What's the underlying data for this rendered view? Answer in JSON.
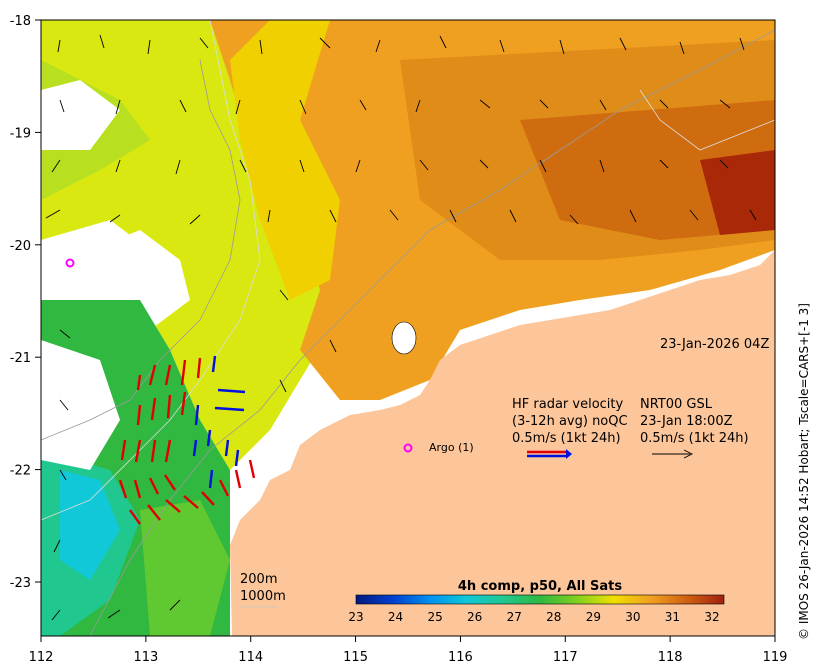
{
  "map": {
    "timestamp": "23-Jan-2026 04Z",
    "x_ticks": [
      "112",
      "113",
      "114",
      "115",
      "116",
      "117",
      "118",
      "119"
    ],
    "y_ticks": [
      "-18",
      "-19",
      "-20",
      "-21",
      "-22",
      "-23"
    ],
    "colorbar": {
      "title": "4h comp, p50, All Sats",
      "ticks": [
        "23",
        "24",
        "25",
        "26",
        "27",
        "28",
        "29",
        "30",
        "31",
        "32"
      ],
      "colors": [
        "#001a80",
        "#0040d0",
        "#0090f0",
        "#10c8d8",
        "#20c890",
        "#30b840",
        "#80d020",
        "#f0e000",
        "#f0a020",
        "#d06010",
        "#a02010"
      ]
    },
    "hf_radar": {
      "line1": "HF radar velocity",
      "line2": "(3-12h avg) noQC",
      "line3": "0.5m/s (1kt 24h)",
      "nrt_line1": "NRT00 GSL",
      "nrt_line2": "23-Jan 18:00Z",
      "nrt_line3": "0.5m/s (1kt 24h)"
    },
    "argo_label": "Argo (1)",
    "depth_contours": [
      "200m",
      "1000m"
    ],
    "credit": "© IMOS 26-Jan-2026 14:52 Hobart; Tscale=CARS+[-1 3]"
  }
}
